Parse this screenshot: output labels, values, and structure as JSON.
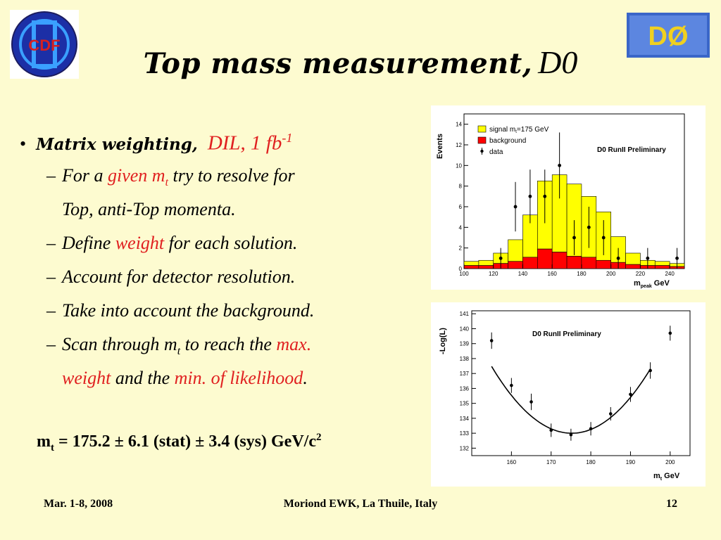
{
  "title": {
    "main": "Top mass measurement,",
    "suffix": "D0"
  },
  "logos": {
    "left": "CDF",
    "right": "DØ"
  },
  "bullets": {
    "b1": {
      "lead": "Matrix weighting,",
      "dil": "DIL, 1 fb",
      "dil_sup": "-1"
    },
    "sub": [
      {
        "pre": "For a ",
        "red": "given m",
        "red_sub": "t",
        "post": " try to resolve for",
        "cont": "Top, anti-Top momenta."
      },
      {
        "pre": "Define ",
        "red": "weight",
        "post": " for each solution."
      },
      {
        "text": "Account for detector resolution."
      },
      {
        "text": "Take into account the background."
      },
      {
        "pre": "Scan through m",
        "sub": "t",
        "post": " to reach the ",
        "red": "max.",
        "cont_red1": "weight",
        "cont_mid": " and the ",
        "cont_red2": "min. of likelihood",
        "cont_end": "."
      }
    ]
  },
  "result": {
    "m": "m",
    "m_sub": "t",
    "text": " = 175.2 ± 6.1 (stat) ± 3.4 (sys) GeV/c",
    "sup": "2"
  },
  "footer": {
    "left": "Mar. 1-8, 2008",
    "center": "Moriond EWK, La Thuile, Italy",
    "right": "12"
  },
  "chart_data": [
    {
      "type": "bar",
      "title": "D0 RunII Preliminary",
      "xlabel": "m",
      "xlabel_sub": "peak",
      "xlabel_unit": "GeV",
      "ylabel": "Events",
      "xlim": [
        100,
        250
      ],
      "ylim": [
        0,
        15
      ],
      "xticks": [
        100,
        120,
        140,
        160,
        180,
        200,
        220,
        240
      ],
      "yticks": [
        0,
        2,
        4,
        6,
        8,
        10,
        12,
        14
      ],
      "bin_edges": [
        100,
        110,
        120,
        130,
        140,
        150,
        160,
        170,
        180,
        190,
        200,
        210,
        220,
        230,
        240,
        250
      ],
      "series": [
        {
          "name": "background",
          "color": "#ff0000",
          "values": [
            0.3,
            0.3,
            0.5,
            0.7,
            1.1,
            1.9,
            1.6,
            1.2,
            1.1,
            0.8,
            0.6,
            0.4,
            0.3,
            0.3,
            0.2
          ]
        },
        {
          "name": "signal m =175 GeV",
          "name_sub": "t",
          "color": "#ffff00",
          "values": [
            0.4,
            0.5,
            1.0,
            2.1,
            4.1,
            6.6,
            7.5,
            7.0,
            5.9,
            4.7,
            2.5,
            1.1,
            0.5,
            0.4,
            0.3
          ]
        },
        {
          "name": "data",
          "color": "#000000",
          "x": [
            125,
            135,
            145,
            155,
            165,
            175,
            185,
            195,
            205,
            225,
            245
          ],
          "y": [
            1,
            6,
            7,
            7,
            10,
            3,
            4,
            3,
            1,
            1,
            1
          ],
          "err": [
            1,
            2.4,
            2.6,
            2.6,
            3.2,
            1.7,
            2.0,
            1.7,
            1,
            1,
            1
          ]
        }
      ]
    },
    {
      "type": "scatter",
      "title": "D0 RunII Preliminary",
      "xlabel": "m",
      "xlabel_sub": "t",
      "xlabel_unit": "GeV",
      "ylabel": "-Log(L)",
      "xlim": [
        150,
        205
      ],
      "ylim": [
        131.5,
        141.2
      ],
      "xticks": [
        160,
        170,
        180,
        190,
        200
      ],
      "yticks": [
        132,
        133,
        134,
        135,
        136,
        137,
        138,
        139,
        140,
        141
      ],
      "points": {
        "x": [
          155,
          160,
          165,
          170,
          175,
          180,
          185,
          190,
          195,
          200
        ],
        "y": [
          139.2,
          136.2,
          135.1,
          133.2,
          132.9,
          133.3,
          134.3,
          135.6,
          137.2,
          139.7
        ],
        "err": [
          0.55,
          0.5,
          0.55,
          0.45,
          0.4,
          0.45,
          0.45,
          0.5,
          0.55,
          0.5
        ]
      },
      "fit": {
        "type": "parabola",
        "x_min": 175.2,
        "y_min": 133.0,
        "x_range": [
          155,
          195
        ]
      }
    }
  ]
}
